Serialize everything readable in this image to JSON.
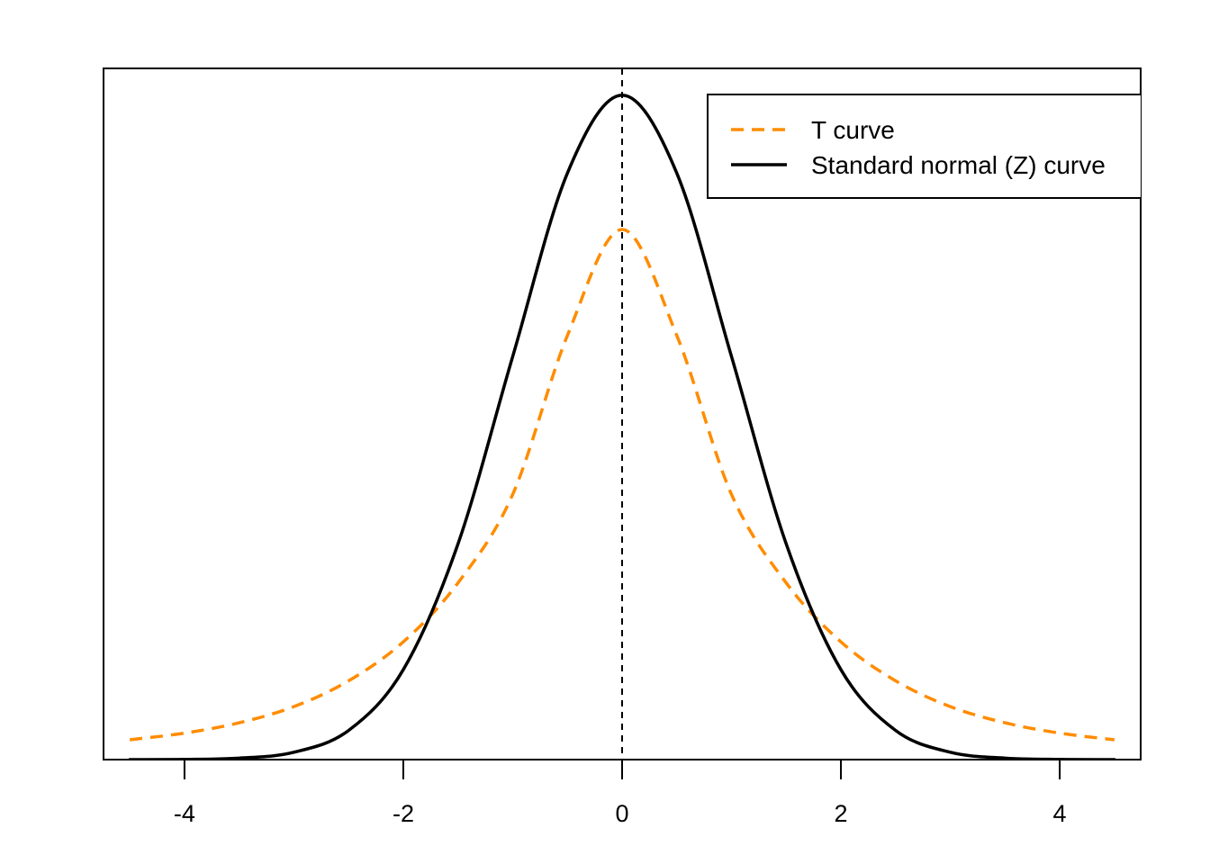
{
  "chart_data": {
    "type": "line",
    "title": "",
    "xlabel": "",
    "ylabel": "",
    "xlim": [
      -4.74,
      4.74
    ],
    "ylim": [
      0,
      0.415
    ],
    "x_ticks": [
      -4,
      -2,
      0,
      2,
      4
    ],
    "x_tick_labels": [
      "-4",
      "-2",
      "0",
      "2",
      "4"
    ],
    "y_axis_visible": false,
    "grid": false,
    "reference_line": {
      "x": 0,
      "style": "dashed",
      "color": "#000000"
    },
    "legend": {
      "placement": "top-right",
      "entries": [
        {
          "label": "T curve",
          "style": "dashed",
          "color": "#ff8c00"
        },
        {
          "label": "Standard normal (Z) curve",
          "style": "solid",
          "color": "#000000"
        }
      ]
    },
    "series": [
      {
        "name": "T curve",
        "color": "#ff8c00",
        "style": "dashed",
        "x": [
          -4.5,
          -4.0,
          -3.5,
          -3.0,
          -2.5,
          -2.0,
          -1.5,
          -1.0,
          -0.5,
          0.0,
          0.5,
          1.0,
          1.5,
          2.0,
          2.5,
          3.0,
          3.5,
          4.0,
          4.5
        ],
        "y": [
          0.0119,
          0.0159,
          0.0221,
          0.0318,
          0.0473,
          0.0707,
          0.1061,
          0.1592,
          0.2546,
          0.3183,
          0.2546,
          0.1592,
          0.1061,
          0.0707,
          0.0473,
          0.0318,
          0.0221,
          0.0159,
          0.0119
        ]
      },
      {
        "name": "Standard normal (Z) curve",
        "color": "#000000",
        "style": "solid",
        "x": [
          -4.5,
          -4.0,
          -3.5,
          -3.0,
          -2.5,
          -2.0,
          -1.5,
          -1.0,
          -0.5,
          0.0,
          0.5,
          1.0,
          1.5,
          2.0,
          2.5,
          3.0,
          3.5,
          4.0,
          4.5
        ],
        "y": [
          0.0,
          0.0001,
          0.0009,
          0.0044,
          0.0175,
          0.054,
          0.1295,
          0.242,
          0.3521,
          0.3989,
          0.3521,
          0.242,
          0.1295,
          0.054,
          0.0175,
          0.0044,
          0.0009,
          0.0001,
          0.0
        ]
      }
    ]
  }
}
